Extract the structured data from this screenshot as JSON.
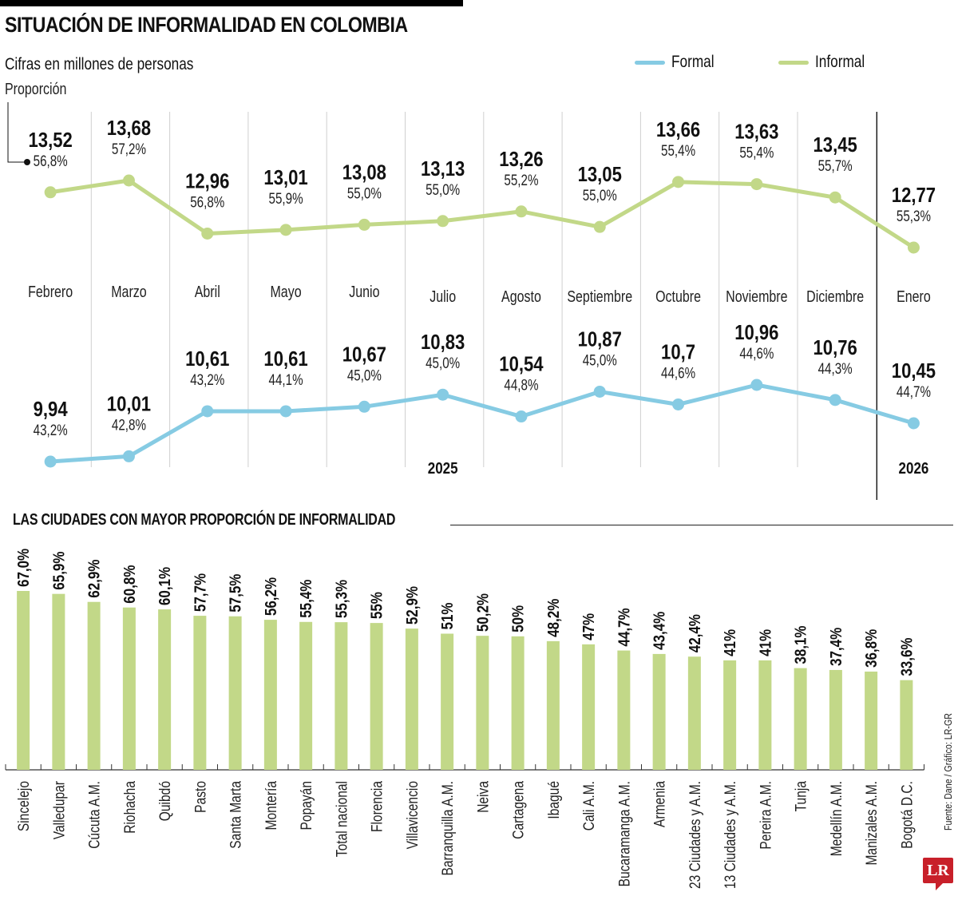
{
  "header": {
    "title": "SITUACIÓN DE INFORMALIDAD EN COLOMBIA",
    "subtitle": "Cifras en millones de personas",
    "proportion_label": "Proporción"
  },
  "legend": [
    {
      "name": "Formal",
      "color": "#86cbe3"
    },
    {
      "name": "Informal",
      "color": "#c2d888"
    }
  ],
  "colors": {
    "formal": "#86cbe3",
    "informal": "#c2d888",
    "bar": "#c2d888",
    "logo": "#c8202a"
  },
  "bar_section": {
    "title": "LAS CIUDADES CON MAYOR PROPORCIÓN DE INFORMALIDAD"
  },
  "footer": {
    "source": "Fuente: Dane / Gráfico: LR-GR",
    "logo_text": "LR"
  },
  "chart_data": [
    {
      "type": "line",
      "title": "SITUACIÓN DE INFORMALIDAD EN COLOMBIA",
      "subtitle": "Cifras en millones de personas",
      "categories": [
        "Febrero",
        "Marzo",
        "Abril",
        "Mayo",
        "Junio",
        "Julio",
        "Agosto",
        "Septiembre",
        "Octubre",
        "Noviembre",
        "Diciembre",
        "Enero"
      ],
      "year_labels": [
        {
          "label": "2025",
          "category": "Julio"
        },
        {
          "label": "2026",
          "category": "Enero"
        }
      ],
      "series": [
        {
          "name": "Informal",
          "values": [
            13.52,
            13.68,
            12.96,
            13.01,
            13.08,
            13.13,
            13.26,
            13.05,
            13.66,
            13.63,
            13.45,
            12.77
          ],
          "value_labels": [
            "13,52",
            "13,68",
            "12,96",
            "13,01",
            "13,08",
            "13,13",
            "13,26",
            "13,05",
            "13,66",
            "13,63",
            "13,45",
            "12,77"
          ],
          "proportion_labels": [
            "56,8%",
            "57,2%",
            "56,8%",
            "55,9%",
            "55,0%",
            "55,0%",
            "55,2%",
            "55,0%",
            "55,4%",
            "55,4%",
            "55,7%",
            "55,3%"
          ],
          "ylim": [
            12.6,
            13.8
          ]
        },
        {
          "name": "Formal",
          "values": [
            9.94,
            10.01,
            10.61,
            10.61,
            10.67,
            10.83,
            10.54,
            10.87,
            10.7,
            10.96,
            10.76,
            10.45
          ],
          "value_labels": [
            "9,94",
            "10,01",
            "10,61",
            "10,61",
            "10,67",
            "10,83",
            "10,54",
            "10,87",
            "10,7",
            "10,96",
            "10,76",
            "10,45"
          ],
          "proportion_labels": [
            "43,2%",
            "42,8%",
            "43,2%",
            "44,1%",
            "45,0%",
            "45,0%",
            "44,8%",
            "45,0%",
            "44,6%",
            "44,6%",
            "44,3%",
            "44,7%"
          ],
          "ylim": [
            9.8,
            11.1
          ]
        }
      ],
      "xlabel": "",
      "ylabel": "",
      "grid": false,
      "legend_position": "top-right"
    },
    {
      "type": "bar",
      "title": "LAS CIUDADES CON MAYOR PROPORCIÓN DE INFORMALIDAD",
      "categories": [
        "Sincelejo",
        "Valledupar",
        "Cúcuta A.M.",
        "Riohacha",
        "Quibdó",
        "Pasto",
        "Santa Marta",
        "Montería",
        "Popayán",
        "Total nacional",
        "Florencia",
        "Villavicencio",
        "Barranquilla A.M.",
        "Neiva",
        "Cartagena",
        "Ibagué",
        "Cali A.M.",
        "Bucaramanga A.M.",
        "Armenia",
        "23 Ciudades y A.M.",
        "13 Ciudades y A.M.",
        "Pereira A.M.",
        "Tunja",
        "Medellín A.M.",
        "Manizales A.M.",
        "Bogotá D.C."
      ],
      "values": [
        67.0,
        65.9,
        62.9,
        60.8,
        60.1,
        57.7,
        57.5,
        56.2,
        55.4,
        55.3,
        55,
        52.9,
        51,
        50.2,
        50,
        48.2,
        47,
        44.7,
        43.4,
        42.4,
        41,
        41,
        38.1,
        37.4,
        36.8,
        33.6
      ],
      "value_labels": [
        "67,0%",
        "65,9%",
        "62,9%",
        "60,8%",
        "60,1%",
        "57,7%",
        "57,5%",
        "56,2%",
        "55,4%",
        "55,3%",
        "55%",
        "52,9%",
        "51%",
        "50,2%",
        "50%",
        "48,2%",
        "47%",
        "44,7%",
        "43,4%",
        "42,4%",
        "41%",
        "41%",
        "38,1%",
        "37,4%",
        "36,8%",
        "33,6%"
      ],
      "xlabel": "",
      "ylabel": "",
      "ylim": [
        0,
        70
      ],
      "grid": false
    }
  ]
}
